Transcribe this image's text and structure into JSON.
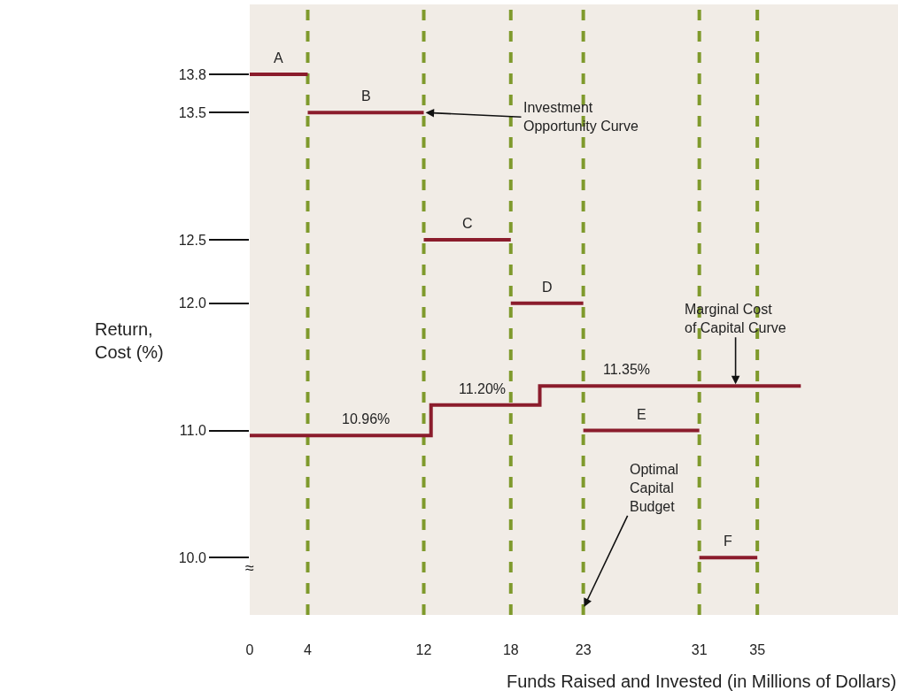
{
  "chart_data": {
    "type": "line",
    "xlabel": "Funds Raised and Invested (in Millions of Dollars)",
    "ylabel": "Return,\nCost (%)",
    "xlim": [
      0,
      44.7
    ],
    "xticks": [
      0,
      4,
      12,
      18,
      23,
      31,
      35
    ],
    "ylim": [
      9.55,
      14.35
    ],
    "yticks": [
      {
        "value": 10,
        "label": "10.0"
      },
      {
        "value": 11,
        "label": "11.0"
      },
      {
        "value": 12,
        "label": "12.0"
      },
      {
        "value": 12.5,
        "label": "12.5"
      },
      {
        "value": 13.5,
        "label": "13.5"
      },
      {
        "value": 13.8,
        "label": "13.8"
      }
    ],
    "grid": false,
    "marker": "none",
    "line_style": "solid",
    "series": [
      {
        "color": "#8b1c2c",
        "x": [
          0,
          4
        ],
        "values": [
          13.8,
          13.8
        ]
      },
      {
        "color": "#8b1c2c",
        "x": [
          4,
          12
        ],
        "values": [
          13.5,
          13.5
        ]
      },
      {
        "color": "#8b1c2c",
        "x": [
          12,
          18
        ],
        "values": [
          12.5,
          12.5
        ]
      },
      {
        "color": "#8b1c2c",
        "x": [
          18,
          23
        ],
        "values": [
          12.0,
          12.0
        ]
      },
      {
        "color": "#8b1c2c",
        "x": [
          23,
          31
        ],
        "values": [
          11.0,
          11.0
        ]
      },
      {
        "color": "#8b1c2c",
        "x": [
          31,
          35
        ],
        "values": [
          10.0,
          10.0
        ]
      },
      {
        "color": "#8b1c2c",
        "x": [
          0,
          12.5,
          12.5,
          20,
          20,
          38
        ],
        "values": [
          10.96,
          10.96,
          11.2,
          11.2,
          11.35,
          11.35
        ]
      }
    ],
    "ref_lines": [
      {
        "axis": "x",
        "value": 4,
        "color": "#7f9a2c",
        "line_style": "dashed"
      },
      {
        "axis": "x",
        "value": 12,
        "color": "#7f9a2c",
        "line_style": "dashed"
      },
      {
        "axis": "x",
        "value": 18,
        "color": "#7f9a2c",
        "line_style": "dashed"
      },
      {
        "axis": "x",
        "value": 23,
        "color": "#7f9a2c",
        "line_style": "dashed"
      },
      {
        "axis": "x",
        "value": 31,
        "color": "#7f9a2c",
        "line_style": "dashed"
      },
      {
        "axis": "x",
        "value": 35,
        "color": "#7f9a2c",
        "line_style": "dashed"
      }
    ],
    "annotations": [
      {
        "text": "A",
        "x": 2,
        "y": 13.8
      },
      {
        "text": "B",
        "x": 8,
        "y": 13.5
      },
      {
        "text": "C",
        "x": 15,
        "y": 12.5
      },
      {
        "text": "D",
        "x": 20.5,
        "y": 12.0
      },
      {
        "text": "E",
        "x": 27,
        "y": 11.0
      },
      {
        "text": "F",
        "x": 33,
        "y": 10.0
      },
      {
        "text": "10.96%",
        "x": 8,
        "y": 10.96
      },
      {
        "text": "11.20%",
        "x": 16,
        "y": 11.2
      },
      {
        "text": "11.35%",
        "x": 26,
        "y": 11.35
      },
      {
        "text": "Investment\nOpportunity Curve",
        "x": 12,
        "y": 13.5
      },
      {
        "text": "Marginal Cost\nof Capital Curve",
        "x": 33.5,
        "y": 11.35
      },
      {
        "text": "Optimal\nCapital\nBudget",
        "x": 23,
        "y": 9.6
      },
      "≈"
    ]
  }
}
